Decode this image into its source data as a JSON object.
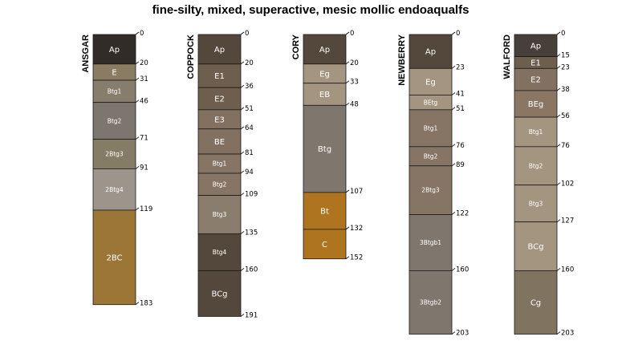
{
  "chart_data": {
    "type": "soil-profile-sketch",
    "title": "fine-silty, mixed, superactive, mesic mollic endoaqualfs",
    "depth_unit": "cm",
    "ylim": [
      0,
      203
    ],
    "profiles": [
      {
        "name": "ANSGAR",
        "horizons": [
          {
            "name": "Ap",
            "top": 0,
            "bottom": 20,
            "color": "#312c27"
          },
          {
            "name": "E",
            "top": 20,
            "bottom": 31,
            "color": "#8a7c62"
          },
          {
            "name": "Btg1",
            "top": 31,
            "bottom": 46,
            "color": "#877d6c"
          },
          {
            "name": "Btg2",
            "top": 46,
            "bottom": 71,
            "color": "#7c766e"
          },
          {
            "name": "2Btg3",
            "top": 71,
            "bottom": 91,
            "color": "#857c66"
          },
          {
            "name": "2Btg4",
            "top": 91,
            "bottom": 119,
            "color": "#9d948c"
          },
          {
            "name": "2BC",
            "top": 119,
            "bottom": 183,
            "color": "#9c7636"
          }
        ],
        "depth_labels": [
          0,
          20,
          31,
          46,
          71,
          91,
          119,
          183
        ]
      },
      {
        "name": "COPPOCK",
        "horizons": [
          {
            "name": "Ap",
            "top": 0,
            "bottom": 20,
            "color": "#54473b"
          },
          {
            "name": "E1",
            "top": 20,
            "bottom": 36,
            "color": "#6d5e4d"
          },
          {
            "name": "E2",
            "top": 36,
            "bottom": 51,
            "color": "#6d5e4d"
          },
          {
            "name": "E3",
            "top": 51,
            "bottom": 64,
            "color": "#827161"
          },
          {
            "name": "BE",
            "top": 64,
            "bottom": 81,
            "color": "#827161"
          },
          {
            "name": "Btg1",
            "top": 81,
            "bottom": 94,
            "color": "#867565"
          },
          {
            "name": "Btg2",
            "top": 94,
            "bottom": 109,
            "color": "#867565"
          },
          {
            "name": "Btg3",
            "top": 109,
            "bottom": 135,
            "color": "#8a7d6d"
          },
          {
            "name": "Btg4",
            "top": 135,
            "bottom": 160,
            "color": "#54473b"
          },
          {
            "name": "BCg",
            "top": 160,
            "bottom": 191,
            "color": "#54473b"
          }
        ],
        "depth_labels": [
          0,
          20,
          36,
          51,
          64,
          81,
          94,
          109,
          135,
          160,
          191
        ]
      },
      {
        "name": "CORY",
        "horizons": [
          {
            "name": "Ap",
            "top": 0,
            "bottom": 20,
            "color": "#54473b"
          },
          {
            "name": "Eg",
            "top": 20,
            "bottom": 33,
            "color": "#a39580"
          },
          {
            "name": "EB",
            "top": 33,
            "bottom": 48,
            "color": "#a39580"
          },
          {
            "name": "Btg",
            "top": 48,
            "bottom": 107,
            "color": "#7f776e"
          },
          {
            "name": "Bt",
            "top": 107,
            "bottom": 132,
            "color": "#ae741f"
          },
          {
            "name": "C",
            "top": 132,
            "bottom": 152,
            "color": "#ae741f"
          }
        ],
        "depth_labels": [
          0,
          20,
          33,
          48,
          107,
          132,
          152
        ]
      },
      {
        "name": "NEWBERRY",
        "horizons": [
          {
            "name": "Ap",
            "top": 0,
            "bottom": 23,
            "color": "#54473b"
          },
          {
            "name": "Eg",
            "top": 23,
            "bottom": 41,
            "color": "#a39580"
          },
          {
            "name": "BEtg",
            "top": 41,
            "bottom": 51,
            "color": "#a39580"
          },
          {
            "name": "Btg1",
            "top": 51,
            "bottom": 76,
            "color": "#867565"
          },
          {
            "name": "Btg2",
            "top": 76,
            "bottom": 89,
            "color": "#867565"
          },
          {
            "name": "2Btg3",
            "top": 89,
            "bottom": 122,
            "color": "#867565"
          },
          {
            "name": "3Btgb1",
            "top": 122,
            "bottom": 160,
            "color": "#7f776e"
          },
          {
            "name": "3Btgb2",
            "top": 160,
            "bottom": 203,
            "color": "#7f776e"
          }
        ],
        "depth_labels": [
          0,
          23,
          41,
          51,
          76,
          89,
          122,
          160,
          203
        ]
      },
      {
        "name": "WALFORD",
        "horizons": [
          {
            "name": "Ap",
            "top": 0,
            "bottom": 15,
            "color": "#473f39"
          },
          {
            "name": "E1",
            "top": 15,
            "bottom": 23,
            "color": "#6d5e4d"
          },
          {
            "name": "E2",
            "top": 23,
            "bottom": 38,
            "color": "#827161"
          },
          {
            "name": "BEg",
            "top": 38,
            "bottom": 56,
            "color": "#8a7662"
          },
          {
            "name": "Btg1",
            "top": 56,
            "bottom": 76,
            "color": "#a39580"
          },
          {
            "name": "Btg2",
            "top": 76,
            "bottom": 102,
            "color": "#a39580"
          },
          {
            "name": "Btg3",
            "top": 102,
            "bottom": 127,
            "color": "#a39580"
          },
          {
            "name": "BCg",
            "top": 127,
            "bottom": 160,
            "color": "#a39580"
          },
          {
            "name": "Cg",
            "top": 160,
            "bottom": 203,
            "color": "#807360"
          }
        ],
        "depth_labels": [
          0,
          15,
          23,
          38,
          56,
          76,
          102,
          127,
          160,
          203
        ]
      }
    ]
  }
}
